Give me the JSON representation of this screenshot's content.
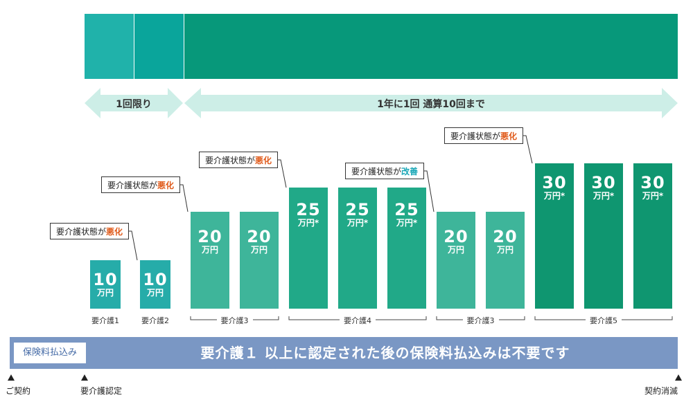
{
  "colors": {
    "teal_light": "#20b2aa",
    "teal": "#0aa59b",
    "green": "#07987a",
    "bar_l1": "#26aca9",
    "bar_l3": "#3eb59a",
    "bar_l4": "#21a988",
    "bar_l5": "#0f9670",
    "arrow": "#cdeee7",
    "banner": "#7a97c4",
    "highlight_bad": "#e05a1a",
    "highlight_good": "#1aa7b7"
  },
  "top_band": {
    "segments": [
      {
        "name": "band-care-level-1",
        "color_key": "teal_light"
      },
      {
        "name": "band-care-level-2",
        "color_key": "teal"
      },
      {
        "name": "band-care-level-3-plus",
        "color_key": "green"
      }
    ]
  },
  "arrows": {
    "once": "1回限り",
    "yearly": "1年に1回 通算10回まで"
  },
  "chart_data": {
    "type": "bar",
    "title": "",
    "unit": "万円",
    "categories": [
      "要介護1",
      "要介護2",
      "要介護3",
      "要介護3",
      "要介護4",
      "要介護4",
      "要介護4",
      "要介護3",
      "要介護3",
      "要介護5",
      "要介護5",
      "要介護5"
    ],
    "values": [
      10,
      10,
      20,
      20,
      25,
      25,
      25,
      20,
      20,
      30,
      30,
      30
    ],
    "asterisk": [
      false,
      false,
      false,
      false,
      true,
      true,
      true,
      false,
      false,
      true,
      true,
      true
    ],
    "ylim": [
      0,
      30
    ],
    "groups": [
      {
        "label": "要介護1",
        "start": 0,
        "end": 0,
        "bracket": false
      },
      {
        "label": "要介護2",
        "start": 1,
        "end": 1,
        "bracket": false
      },
      {
        "label": "要介護3",
        "start": 2,
        "end": 3,
        "bracket": true
      },
      {
        "label": "要介護4",
        "start": 4,
        "end": 6,
        "bracket": true
      },
      {
        "label": "要介護3",
        "start": 7,
        "end": 8,
        "bracket": true
      },
      {
        "label": "要介護5",
        "start": 9,
        "end": 11,
        "bracket": true
      }
    ],
    "callouts": [
      {
        "before": 1,
        "prefix": "要介護状態が",
        "highlight": "悪化",
        "kind": "bad"
      },
      {
        "before": 2,
        "prefix": "要介護状態が",
        "highlight": "悪化",
        "kind": "bad"
      },
      {
        "before": 4,
        "prefix": "要介護状態が",
        "highlight": "悪化",
        "kind": "bad"
      },
      {
        "before": 7,
        "prefix": "要介護状態が",
        "highlight": "改善",
        "kind": "good"
      },
      {
        "before": 9,
        "prefix": "要介護状態が",
        "highlight": "悪化",
        "kind": "bad"
      }
    ]
  },
  "banner": {
    "tag": "保険料払込み",
    "text": "要介護１ 以上に認定された後の保険料払込みは不要です"
  },
  "timeline": {
    "contract": "ご契約",
    "certified": "要介護認定",
    "end": "契約消滅"
  }
}
